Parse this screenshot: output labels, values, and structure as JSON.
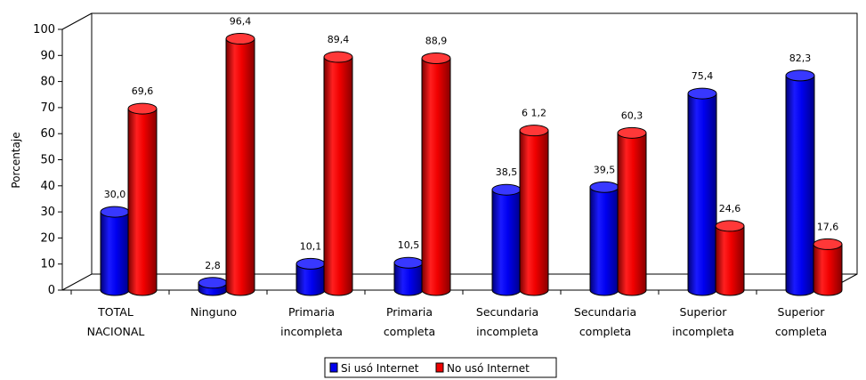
{
  "chart_data": {
    "type": "bar",
    "ylabel": "Porcentaje",
    "xlabel": "",
    "ylim": [
      0,
      100
    ],
    "yticks": [
      "0",
      "10",
      "20",
      "30",
      "40",
      "50",
      "60",
      "70",
      "80",
      "90",
      "100"
    ],
    "categories": [
      [
        "TOTAL",
        "NACIONAL"
      ],
      [
        "Ninguno"
      ],
      [
        "Primaria",
        "incompleta"
      ],
      [
        "Primaria",
        "completa"
      ],
      [
        "Secundaria",
        "incompleta"
      ],
      [
        "Secundaria",
        "completa"
      ],
      [
        "Superior",
        "incompleta"
      ],
      [
        "Superior",
        "completa"
      ]
    ],
    "series": [
      {
        "name": "Si usó Internet",
        "color": "#0000ee",
        "values": [
          30.0,
          2.8,
          10.1,
          10.5,
          38.5,
          39.5,
          75.4,
          82.3
        ],
        "labels": [
          "30,0",
          "2,8",
          "10,1",
          "10,5",
          "38,5",
          "39,5",
          "75,4",
          "82,3"
        ]
      },
      {
        "name": "No usó Internet",
        "color": "#ee0000",
        "values": [
          69.6,
          96.4,
          89.4,
          88.9,
          61.2,
          60.3,
          24.6,
          17.6
        ],
        "labels": [
          "69,6",
          "96,4",
          "89,4",
          "88,9",
          "6 1,2",
          "60,3",
          "24,6",
          "17,6"
        ]
      }
    ],
    "grid": false,
    "legend": "bottom-center",
    "style": "3d-cylinder"
  }
}
